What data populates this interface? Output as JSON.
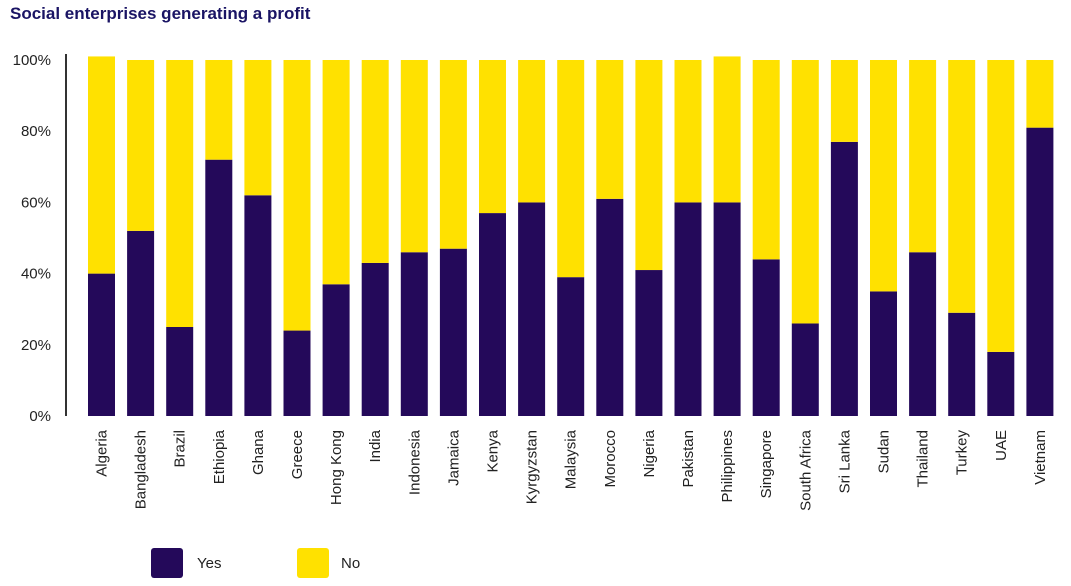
{
  "chart_data": {
    "type": "bar",
    "stacked": true,
    "title": "Social enterprises generating a profit",
    "categories": [
      "Algeria",
      "Bangladesh",
      "Brazil",
      "Ethiopia",
      "Ghana",
      "Greece",
      "Hong Kong",
      "India",
      "Indonesia",
      "Jamaica",
      "Kenya",
      "Kyrgyzstan",
      "Malaysia",
      "Morocco",
      "Nigeria",
      "Pakistan",
      "Philippines",
      "Singapore",
      "South Africa",
      "Sri Lanka",
      "Sudan",
      "Thailand",
      "Turkey",
      "UAE",
      "Vietnam"
    ],
    "series": [
      {
        "name": "Yes",
        "values": [
          40,
          52,
          25,
          72,
          62,
          24,
          37,
          43,
          46,
          47,
          57,
          60,
          39,
          61,
          41,
          60,
          60,
          44,
          26,
          77,
          35,
          46,
          29,
          18,
          81
        ]
      },
      {
        "name": "No",
        "values": [
          61,
          48,
          75,
          28,
          38,
          76,
          63,
          57,
          54,
          53,
          43,
          40,
          61,
          39,
          59,
          40,
          41,
          56,
          74,
          23,
          65,
          54,
          71,
          82,
          19
        ]
      }
    ],
    "yticks": [
      "0%",
      "20%",
      "40%",
      "60%",
      "80%",
      "100%"
    ],
    "ylim": [
      0,
      100
    ],
    "legend_position": "bottom-left",
    "colors": {
      "Yes": "#24095a",
      "No": "#ffe100",
      "title": "#1a1464",
      "axis": "#333333"
    }
  }
}
